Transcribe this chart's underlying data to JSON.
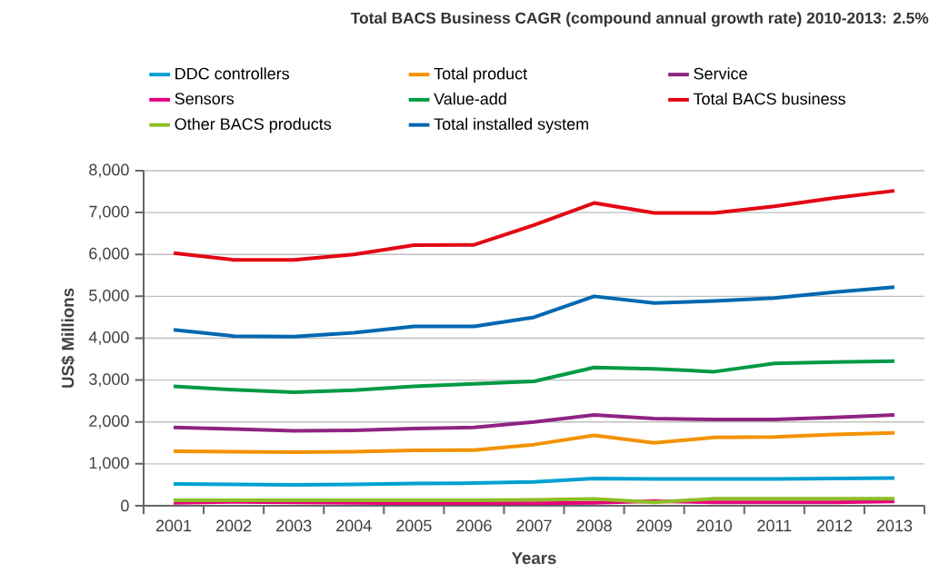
{
  "chart_data": {
    "type": "line",
    "title": "Total BACS Business CAGR (compound annual growth rate) 2010-2013: 2.5%",
    "xlabel": "Years",
    "ylabel": "US$ Millions",
    "categories": [
      "2001",
      "2002",
      "2003",
      "2004",
      "2005",
      "2006",
      "2007",
      "2008",
      "2009",
      "2010",
      "2011",
      "2012",
      "2013"
    ],
    "series": [
      {
        "name": "DDC controllers",
        "color": "#00a0d2",
        "values": [
          520,
          510,
          500,
          510,
          530,
          540,
          570,
          650,
          640,
          640,
          640,
          650,
          660
        ]
      },
      {
        "name": "Total product",
        "color": "#f39200",
        "values": [
          1300,
          1290,
          1280,
          1290,
          1320,
          1330,
          1460,
          1680,
          1500,
          1630,
          1640,
          1700,
          1740
        ]
      },
      {
        "name": "Service",
        "color": "#8f2483",
        "values": [
          1870,
          1830,
          1790,
          1800,
          1840,
          1870,
          2000,
          2170,
          2080,
          2060,
          2060,
          2110,
          2170
        ]
      },
      {
        "name": "Sensors",
        "color": "#e6007e",
        "values": [
          70,
          90,
          80,
          70,
          60,
          60,
          60,
          70,
          110,
          80,
          80,
          80,
          100
        ]
      },
      {
        "name": "Value-add",
        "color": "#009a44",
        "values": [
          2850,
          2770,
          2710,
          2760,
          2850,
          2910,
          2970,
          3300,
          3270,
          3200,
          3400,
          3430,
          3450
        ]
      },
      {
        "name": "Total BACS business",
        "color": "#e30613",
        "values": [
          6030,
          5870,
          5870,
          6000,
          6220,
          6230,
          6700,
          7230,
          6990,
          6990,
          7150,
          7350,
          7520
        ]
      },
      {
        "name": "Other BACS products",
        "color": "#8fbe26",
        "values": [
          130,
          130,
          130,
          130,
          130,
          130,
          140,
          160,
          80,
          170,
          170,
          170,
          170
        ]
      },
      {
        "name": "Total installed system",
        "color": "#0068b1",
        "values": [
          4200,
          4050,
          4040,
          4130,
          4280,
          4280,
          4500,
          5000,
          4840,
          4890,
          4960,
          5100,
          5220
        ]
      }
    ],
    "ylim": [
      0,
      8000
    ],
    "yticks": [
      {
        "value": 0,
        "label": "0"
      },
      {
        "value": 1000,
        "label": "1,000"
      },
      {
        "value": 2000,
        "label": "2,000"
      },
      {
        "value": 3000,
        "label": "3,000"
      },
      {
        "value": 4000,
        "label": "4,000"
      },
      {
        "value": 5000,
        "label": "5,000"
      },
      {
        "value": 6000,
        "label": "6,000"
      },
      {
        "value": 7000,
        "label": "7,000"
      },
      {
        "value": 8000,
        "label": "8,000"
      }
    ],
    "grid": "y",
    "legend": "top",
    "marker": "none",
    "line_style": "solid"
  }
}
